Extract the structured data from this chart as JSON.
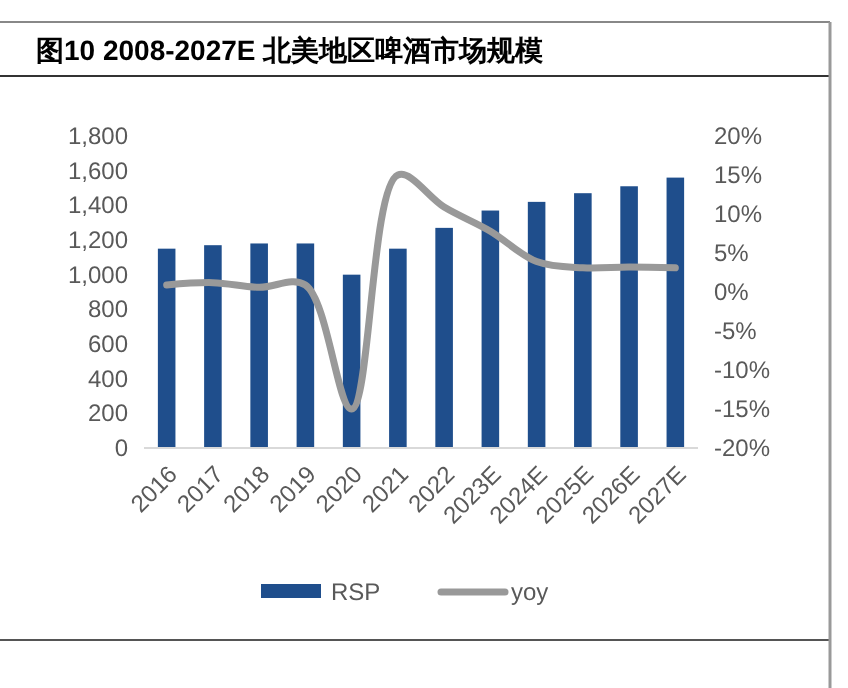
{
  "chart_data": {
    "type": "bar",
    "title": "图10 2008-2027E 北美地区啤酒市场规模",
    "categories": [
      "2016",
      "2017",
      "2018",
      "2019",
      "2020",
      "2021",
      "2022",
      "2023E",
      "2024E",
      "2025E",
      "2026E",
      "2027E"
    ],
    "series": [
      {
        "name": "RSP",
        "color": "#1f4e8c",
        "values": [
          1150,
          1170,
          1180,
          1180,
          1000,
          1150,
          1270,
          1370,
          1420,
          1470,
          1510,
          1560
        ]
      },
      {
        "name": "yoy",
        "type": "line",
        "axis": "y2",
        "color": "#999999",
        "values": [
          0.9,
          1.2,
          0.6,
          0.9,
          -15.0,
          15.0,
          10.9,
          7.8,
          3.9,
          3.1,
          3.2,
          3.1
        ]
      }
    ],
    "ylim": [
      0,
      1800
    ],
    "yticks": [
      0,
      {
        "value": 200,
        "label": "200"
      },
      {
        "value": 400,
        "label": "400"
      },
      {
        "value": 600,
        "label": "600"
      },
      {
        "value": 800,
        "label": "800"
      },
      {
        "value": 1000,
        "label": "1,000"
      },
      {
        "value": 1200,
        "label": "1,200"
      },
      {
        "value": 1400,
        "label": "1,400"
      },
      {
        "value": 1600,
        "label": "1,600"
      },
      {
        "value": 1800,
        "label": "1,800"
      }
    ],
    "y2lim": [
      -20,
      20
    ],
    "y2ticks": [
      {
        "value": -20,
        "label": "-20%"
      },
      {
        "value": -15,
        "label": "-15%"
      },
      {
        "value": -10,
        "label": "-10%"
      },
      {
        "value": -5,
        "label": "-5%"
      },
      {
        "value": 0,
        "label": "0%"
      },
      {
        "value": 5,
        "label": "5%"
      },
      {
        "value": 10,
        "label": "10%"
      },
      {
        "value": 15,
        "label": "15%"
      },
      {
        "value": 20,
        "label": "20%"
      }
    ],
    "grid": false,
    "legend": "bottom",
    "marker": "none",
    "line_style": "solid"
  }
}
